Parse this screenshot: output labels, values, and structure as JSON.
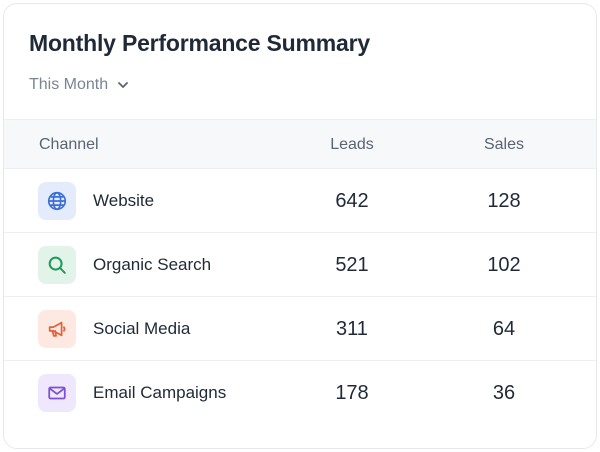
{
  "card": {
    "title": "Monthly Performance Summary",
    "period": "This Month"
  },
  "table": {
    "headers": {
      "channel": "Channel",
      "leads": "Leads",
      "sales": "Sales"
    },
    "rows": [
      {
        "channel": "Website",
        "leads": "642",
        "sales": "128",
        "icon": "globe-icon",
        "icon_color": "#3b6fd6",
        "icon_bg": "#e4ebfb"
      },
      {
        "channel": "Organic Search",
        "leads": "521",
        "sales": "102",
        "icon": "search-icon",
        "icon_color": "#1f9a5a",
        "icon_bg": "#e2f4ea"
      },
      {
        "channel": "Social Media",
        "leads": "311",
        "sales": "64",
        "icon": "megaphone-icon",
        "icon_color": "#e2613a",
        "icon_bg": "#fde9e2"
      },
      {
        "channel": "Email Campaigns",
        "leads": "178",
        "sales": "36",
        "icon": "mail-icon",
        "icon_color": "#7c4fd6",
        "icon_bg": "#efe7fb"
      }
    ]
  }
}
